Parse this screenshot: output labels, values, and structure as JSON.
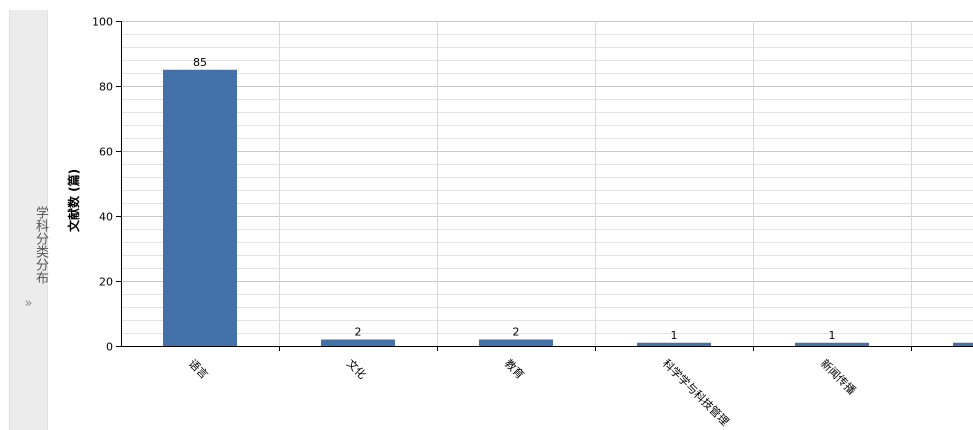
{
  "side_tab": {
    "label": "学科分类分布",
    "toggle": "»"
  },
  "chart_data": {
    "type": "bar",
    "title": "",
    "xlabel": "",
    "ylabel": "文献数 (篇)",
    "ylim": [
      0,
      100
    ],
    "yticks": [
      0,
      20,
      40,
      60,
      80,
      100
    ],
    "grid": true,
    "categories": [
      "语言",
      "文化",
      "教育",
      "科学学与科技管理",
      "新闻传播",
      ""
    ],
    "values": [
      85,
      2,
      2,
      1,
      1,
      1
    ],
    "data_labels": [
      "85",
      "2",
      "2",
      "1",
      "1",
      ""
    ],
    "bar_color": "#4472a8"
  }
}
